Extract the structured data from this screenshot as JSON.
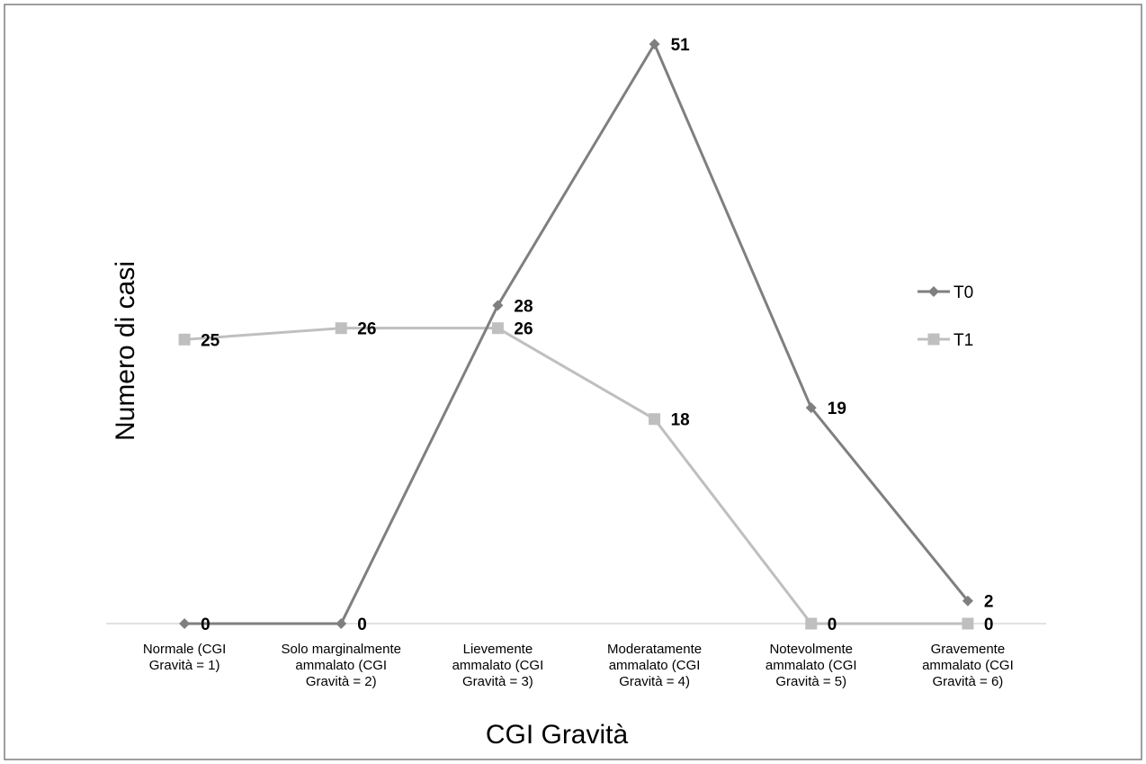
{
  "chart_data": {
    "type": "line",
    "title": "",
    "xlabel": "CGI Gravità",
    "ylabel": "Numero di casi",
    "categories": [
      [
        "Normale (CGI",
        "Gravità = 1)"
      ],
      [
        "Solo marginalmente",
        "ammalato (CGI",
        "Gravità = 2)"
      ],
      [
        "Lievemente",
        "ammalato (CGI",
        "Gravità = 3)"
      ],
      [
        "Moderatamente",
        "ammalato (CGI",
        "Gravità = 4)"
      ],
      [
        "Notevolmente",
        "ammalato (CGI",
        "Gravità = 5)"
      ],
      [
        "Gravemente",
        "ammalato (CGI",
        "Gravità = 6)"
      ]
    ],
    "series": [
      {
        "name": "T0",
        "values": [
          0,
          0,
          28,
          51,
          19,
          2
        ],
        "color": "#7f7f7f",
        "marker": "diamond"
      },
      {
        "name": "T1",
        "values": [
          25,
          26,
          26,
          18,
          0,
          0
        ],
        "color": "#bfbfbf",
        "marker": "square"
      }
    ],
    "ylim": [
      0,
      51
    ],
    "grid": false,
    "legend": "right"
  }
}
